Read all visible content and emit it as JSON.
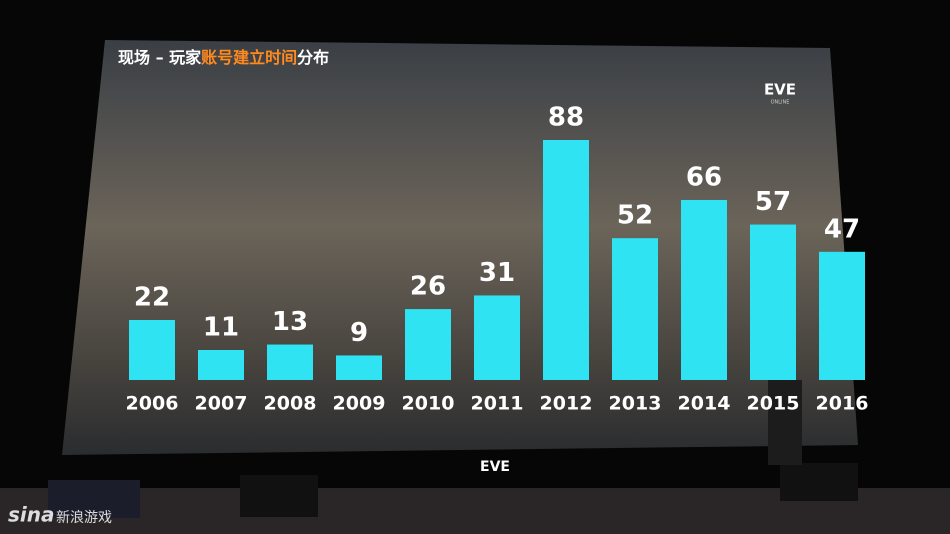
{
  "chart_data": {
    "type": "bar",
    "title": [
      "现场 – 玩家",
      "账号建立时间",
      "分布"
    ],
    "title_colors": [
      "#ffffff",
      "#ff8a1e",
      "#ffffff"
    ],
    "categories": [
      "2006",
      "2007",
      "2008",
      "2009",
      "2010",
      "2011",
      "2012",
      "2013",
      "2014",
      "2015",
      "2016"
    ],
    "values": [
      22,
      11,
      13,
      9,
      26,
      31,
      88,
      52,
      66,
      57,
      47
    ],
    "color": "#2fe3f2"
  },
  "logo": {
    "name": "EVE",
    "sub": "ONLINE"
  },
  "watermark": {
    "brand": "sina",
    "text": "新浪游戏"
  }
}
